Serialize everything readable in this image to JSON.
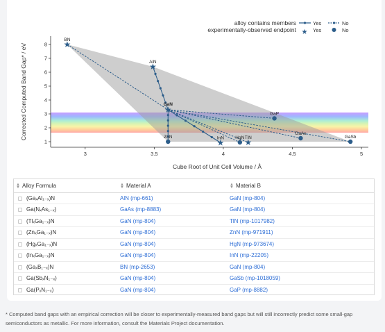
{
  "legend": {
    "members_label": "alloy contains members",
    "yes": "Yes",
    "no": "No",
    "endpoint_label": "experimentally-observed endpoint"
  },
  "chart_data": {
    "type": "scatter",
    "xlabel": "Cube Root of Unit Cell Volume / Å",
    "ylabel": "Corrected Computed Band Gap* / eV",
    "xlim": [
      2.75,
      5.05
    ],
    "ylim": [
      0.6,
      8.6
    ],
    "xticks": [
      3,
      3.5,
      4,
      4.5,
      5
    ],
    "yticks": [
      1,
      2,
      3,
      4,
      5,
      6,
      7,
      8
    ],
    "visible_spectrum_band": [
      1.65,
      3.1
    ],
    "points": [
      {
        "label": "BN",
        "x": 2.87,
        "y": 8.0,
        "observed": true
      },
      {
        "label": "AlN",
        "x": 3.49,
        "y": 6.4,
        "observed": true
      },
      {
        "label": "GaN",
        "x": 3.6,
        "y": 3.3,
        "observed": true
      },
      {
        "label": "ZnN",
        "x": 3.6,
        "y": 1.0,
        "observed": false
      },
      {
        "label": "InN",
        "x": 3.98,
        "y": 0.93,
        "observed": true
      },
      {
        "label": "HgN",
        "x": 4.12,
        "y": 0.95,
        "observed": false
      },
      {
        "label": "TlN",
        "x": 4.18,
        "y": 0.95,
        "observed": true
      },
      {
        "label": "GaP",
        "x": 4.37,
        "y": 2.68,
        "observed": false
      },
      {
        "label": "GaAs",
        "x": 4.56,
        "y": 1.25,
        "observed": false
      },
      {
        "label": "GaSb",
        "x": 4.92,
        "y": 1.0,
        "observed": false
      }
    ],
    "hull": [
      [
        2.87,
        8.0
      ],
      [
        3.6,
        1.0
      ],
      [
        4.92,
        1.0
      ],
      [
        3.49,
        6.4
      ]
    ]
  },
  "table": {
    "headers": [
      "Alloy Formula",
      "Material A",
      "Material B"
    ],
    "rows": [
      {
        "formula": "(GaₓAl₁₋ₓ)N",
        "a": "AlN (mp-661)",
        "b": "GaN (mp-804)"
      },
      {
        "formula": "Ga(NₓAs₁₋ₓ)",
        "a": "GaAs (mp-8883)",
        "b": "GaN (mp-804)"
      },
      {
        "formula": "(TlₓGa₁₋ₓ)N",
        "a": "GaN (mp-804)",
        "b": "TlN (mp-1017982)"
      },
      {
        "formula": "(ZnₓGa₁₋ₓ)N",
        "a": "GaN (mp-804)",
        "b": "ZnN (mp-971911)"
      },
      {
        "formula": "(HgₓGa₁₋ₓ)N",
        "a": "GaN (mp-804)",
        "b": "HgN (mp-973674)"
      },
      {
        "formula": "(InₓGa₁₋ₓ)N",
        "a": "GaN (mp-804)",
        "b": "InN (mp-22205)"
      },
      {
        "formula": "(GaₓB₁₋ₓ)N",
        "a": "BN (mp-2653)",
        "b": "GaN (mp-804)"
      },
      {
        "formula": "Ga(SbₓN₁₋ₓ)",
        "a": "GaN (mp-804)",
        "b": "GaSb (mp-1018059)"
      },
      {
        "formula": "Ga(PₓN₁₋ₓ)",
        "a": "GaN (mp-804)",
        "b": "GaP (mp-8882)"
      }
    ]
  },
  "footnote": "* Computed band gaps with an empirical correction will be closer to experimentally-measured band gaps but will still incorrectly predict some small-gap semiconductors as metallic. For more information, consult the Materials Project documentation."
}
